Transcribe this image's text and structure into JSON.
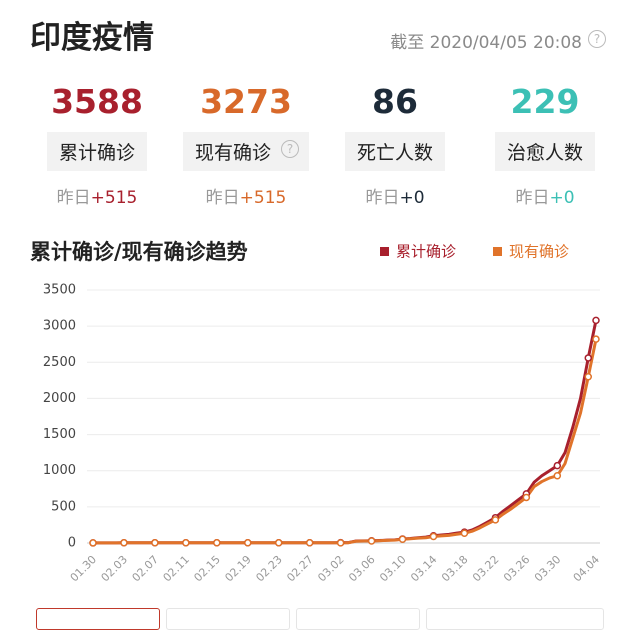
{
  "header": {
    "title": "印度疫情",
    "timestamp": "截至 2020/04/05 20:08"
  },
  "stats": [
    {
      "value": 3588,
      "label": "累计确诊",
      "delta_prefix": "昨日",
      "delta": "+515",
      "color": "#a8202d"
    },
    {
      "value": 3273,
      "label": "现有确诊",
      "delta_prefix": "昨日",
      "delta": "+515",
      "color": "#d8692a"
    },
    {
      "value": 86,
      "label": "死亡人数",
      "delta_prefix": "昨日",
      "delta": "+0",
      "color": "#1d2b39"
    },
    {
      "value": 229,
      "label": "治愈人数",
      "delta_prefix": "昨日",
      "delta": "+0",
      "color": "#3cc0b5"
    }
  ],
  "chart_data": {
    "type": "line",
    "title": "累计确诊/现有确诊趋势",
    "x": [
      "01.30",
      null,
      null,
      null,
      "02.03",
      null,
      null,
      null,
      "02.07",
      null,
      null,
      null,
      "02.11",
      null,
      null,
      null,
      "02.15",
      null,
      null,
      null,
      "02.19",
      null,
      null,
      null,
      "02.23",
      null,
      null,
      null,
      "02.27",
      null,
      null,
      null,
      "03.02",
      null,
      null,
      null,
      "03.06",
      null,
      null,
      null,
      "03.10",
      null,
      null,
      null,
      "03.14",
      null,
      null,
      null,
      "03.18",
      null,
      null,
      null,
      "03.22",
      null,
      null,
      null,
      "03.26",
      null,
      null,
      null,
      "03.30",
      null,
      null,
      null,
      null,
      "04.04"
    ],
    "series": [
      {
        "name": "累计确诊",
        "color": "#a8202d",
        "values": [
          1,
          1,
          1,
          2,
          3,
          3,
          3,
          3,
          3,
          3,
          3,
          3,
          3,
          3,
          3,
          3,
          3,
          3,
          3,
          3,
          3,
          3,
          3,
          3,
          3,
          3,
          3,
          3,
          3,
          3,
          3,
          3,
          5,
          6,
          28,
          30,
          31,
          34,
          39,
          43,
          56,
          62,
          73,
          82,
          100,
          110,
          119,
          137,
          150,
          180,
          230,
          290,
          350,
          440,
          520,
          600,
          680,
          840,
          930,
          1000,
          1070,
          1250,
          1600,
          2000,
          2560,
          3080
        ]
      },
      {
        "name": "现有确诊",
        "color": "#e0732a",
        "values": [
          1,
          1,
          1,
          2,
          3,
          3,
          3,
          3,
          3,
          3,
          3,
          3,
          3,
          3,
          3,
          3,
          3,
          3,
          3,
          3,
          3,
          3,
          3,
          3,
          3,
          3,
          3,
          3,
          3,
          3,
          3,
          3,
          2,
          3,
          25,
          27,
          28,
          31,
          36,
          40,
          52,
          58,
          68,
          72,
          90,
          98,
          105,
          121,
          135,
          163,
          210,
          265,
          320,
          400,
          470,
          550,
          630,
          780,
          850,
          900,
          930,
          1100,
          1450,
          1800,
          2300,
          2820
        ]
      }
    ],
    "ylim": [
      0,
      3500
    ],
    "yticks": [
      0,
      500,
      1000,
      1500,
      2000,
      2500,
      3000,
      3500
    ],
    "grid": true
  }
}
